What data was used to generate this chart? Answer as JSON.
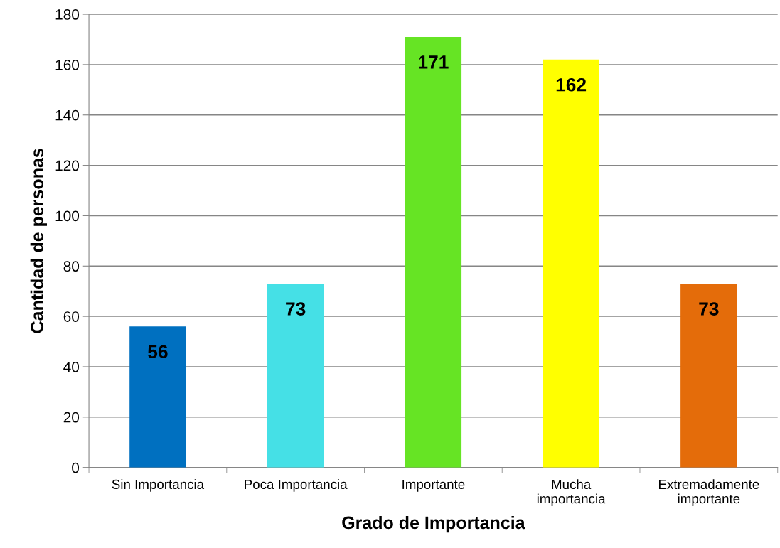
{
  "chart_data": {
    "type": "bar",
    "xlabel": "Grado de Importancia",
    "ylabel": "Cantidad de personas",
    "categories": [
      "Sin Importancia",
      "Poca Importancia",
      "Importante",
      "Mucha\nimportancia",
      "Extremadamente\nimportante"
    ],
    "values": [
      56,
      73,
      171,
      162,
      73
    ],
    "colors": [
      "#0070c0",
      "#45e0e6",
      "#66e424",
      "#ffff00",
      "#e46c0a"
    ],
    "ylim": [
      0,
      180
    ],
    "yticks": [
      0,
      20,
      40,
      60,
      80,
      100,
      120,
      140,
      160,
      180
    ],
    "grid": "y",
    "data_labels": true
  }
}
